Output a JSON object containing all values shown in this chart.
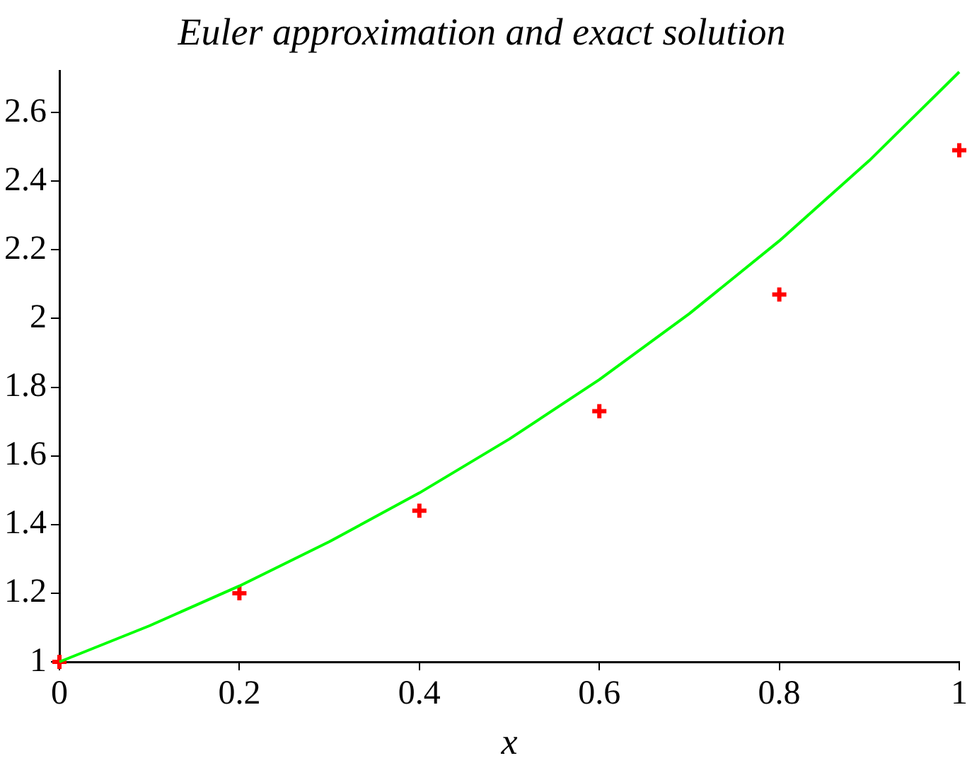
{
  "chart_data": {
    "type": "line",
    "title": "Euler approximation and exact solution",
    "xlabel": "x",
    "xlim": [
      0,
      1
    ],
    "xticks": [
      0,
      0.2,
      0.4,
      0.6,
      0.8,
      1
    ],
    "ylim": [
      1,
      2.72
    ],
    "yticks": [
      1,
      1.2,
      1.4,
      1.6,
      1.8,
      2,
      2.2,
      2.4,
      2.6
    ],
    "grid": false,
    "legend": false,
    "series": [
      {
        "type": "line",
        "color": "#00ff00",
        "marker": "none",
        "line_style": "solid",
        "x": [
          0,
          0.1,
          0.2,
          0.3,
          0.4,
          0.5,
          0.6,
          0.7,
          0.8,
          0.9,
          1
        ],
        "values": [
          1,
          1.105,
          1.221,
          1.35,
          1.492,
          1.649,
          1.822,
          2.014,
          2.226,
          2.46,
          2.718
        ]
      },
      {
        "type": "scatter",
        "color": "#ff0000",
        "marker": "cross",
        "x": [
          0,
          0.2,
          0.4,
          0.6,
          0.8,
          1
        ],
        "values": [
          1,
          1.2,
          1.44,
          1.73,
          2.07,
          2.49
        ]
      }
    ]
  }
}
